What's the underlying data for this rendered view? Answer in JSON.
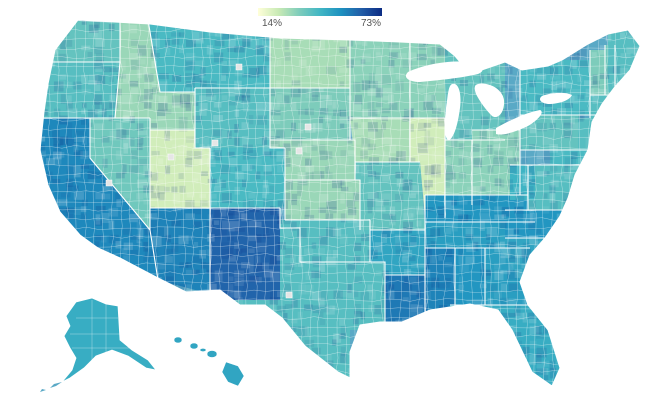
{
  "legend": {
    "min_label": "14%",
    "max_label": "73%",
    "min_value": 14,
    "max_value": 73,
    "color_stops": [
      "#ffffd9",
      "#c7e9b4",
      "#7fcdbb",
      "#41b6c4",
      "#1d91c0",
      "#225ea8",
      "#0c2c84"
    ]
  },
  "map": {
    "boundary_color": "#ffffff",
    "missing_color": "#e6e6e6",
    "regions": [
      {
        "name": "washington",
        "value": 38
      },
      {
        "name": "oregon",
        "value": 40
      },
      {
        "name": "california",
        "value": 55
      },
      {
        "name": "nevada",
        "value": 36
      },
      {
        "name": "idaho",
        "value": 30
      },
      {
        "name": "utah",
        "value": 22
      },
      {
        "name": "arizona",
        "value": 56
      },
      {
        "name": "montana",
        "value": 42
      },
      {
        "name": "wyoming",
        "value": 40
      },
      {
        "name": "colorado",
        "value": 42
      },
      {
        "name": "new-mexico",
        "value": 62
      },
      {
        "name": "north-dakota",
        "value": 28
      },
      {
        "name": "south-dakota",
        "value": 34
      },
      {
        "name": "nebraska",
        "value": 30
      },
      {
        "name": "kansas",
        "value": 30
      },
      {
        "name": "oklahoma",
        "value": 40
      },
      {
        "name": "texas",
        "value": 40
      },
      {
        "name": "minnesota",
        "value": 32
      },
      {
        "name": "iowa",
        "value": 28
      },
      {
        "name": "missouri",
        "value": 38
      },
      {
        "name": "arkansas",
        "value": 48
      },
      {
        "name": "louisiana",
        "value": 58
      },
      {
        "name": "wisconsin",
        "value": 32
      },
      {
        "name": "illinois",
        "value": 22
      },
      {
        "name": "michigan",
        "value": 38
      },
      {
        "name": "indiana",
        "value": 32
      },
      {
        "name": "ohio",
        "value": 32
      },
      {
        "name": "kentucky",
        "value": 52
      },
      {
        "name": "tennessee",
        "value": 50
      },
      {
        "name": "mississippi",
        "value": 56
      },
      {
        "name": "alabama",
        "value": 52
      },
      {
        "name": "georgia",
        "value": 50
      },
      {
        "name": "florida",
        "value": 46
      },
      {
        "name": "south-carolina",
        "value": 48
      },
      {
        "name": "north-carolina",
        "value": 52
      },
      {
        "name": "virginia",
        "value": 40
      },
      {
        "name": "west-virginia",
        "value": 44
      },
      {
        "name": "pennsylvania",
        "value": 38
      },
      {
        "name": "new-york",
        "value": 42
      },
      {
        "name": "vermont",
        "value": 34
      },
      {
        "name": "new-hampshire",
        "value": 36
      },
      {
        "name": "maine",
        "value": 40
      },
      {
        "name": "massachusetts",
        "value": 40
      },
      {
        "name": "new-jersey",
        "value": 40
      },
      {
        "name": "maryland",
        "value": 42
      },
      {
        "name": "alaska",
        "value": 46
      },
      {
        "name": "hawaii",
        "value": 48
      }
    ]
  }
}
